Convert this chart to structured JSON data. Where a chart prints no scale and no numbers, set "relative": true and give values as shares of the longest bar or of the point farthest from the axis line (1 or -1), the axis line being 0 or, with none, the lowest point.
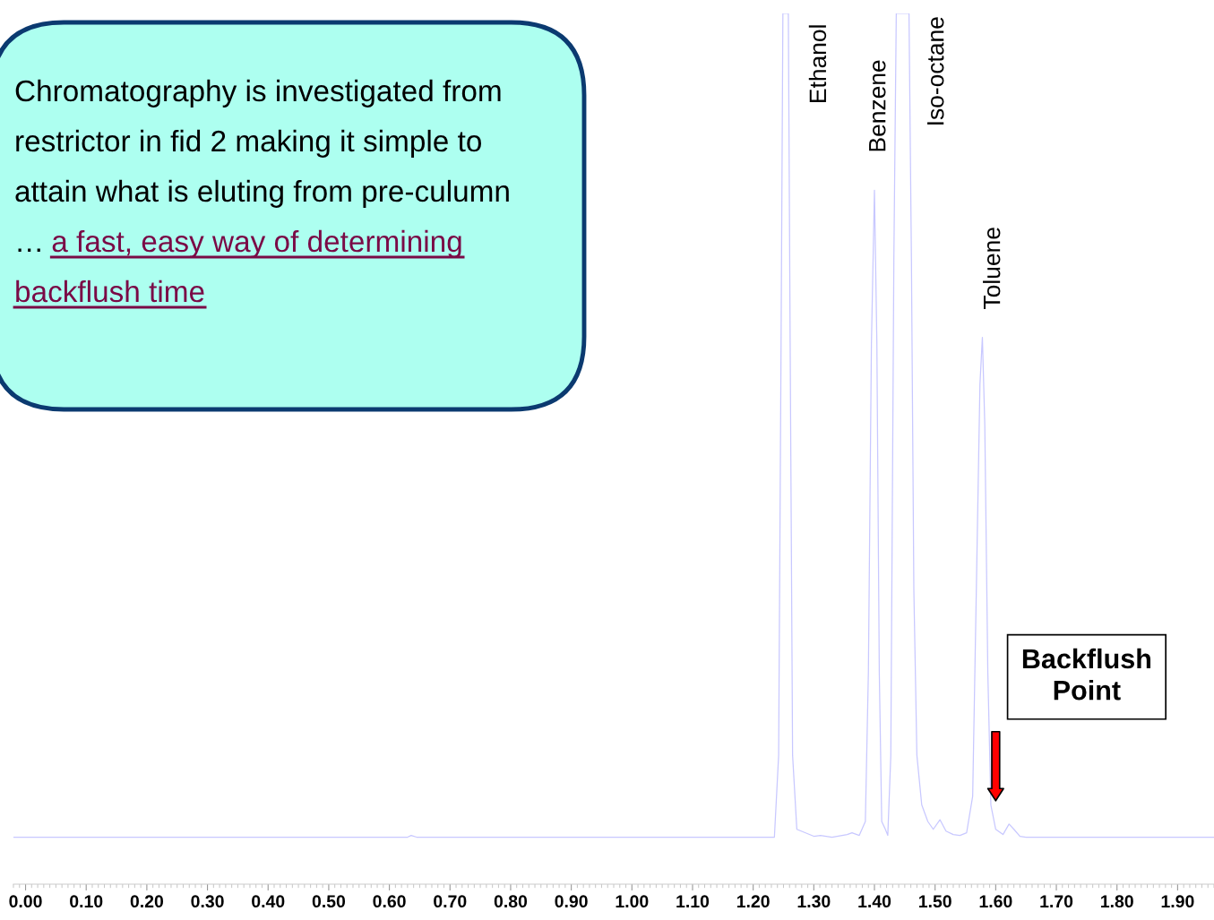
{
  "chart_data": {
    "type": "line",
    "relative": true,
    "x": [
      -0.02,
      0.63,
      0.636,
      0.645,
      1.235,
      1.242,
      1.246,
      1.249,
      1.258,
      1.261,
      1.265,
      1.272,
      1.3,
      1.311,
      1.33,
      1.355,
      1.363,
      1.375,
      1.385,
      1.39,
      1.395,
      1.4,
      1.404,
      1.408,
      1.412,
      1.418,
      1.422,
      1.427,
      1.432,
      1.436,
      1.457,
      1.461,
      1.465,
      1.47,
      1.478,
      1.488,
      1.497,
      1.508,
      1.518,
      1.53,
      1.541,
      1.552,
      1.562,
      1.568,
      1.574,
      1.578,
      1.582,
      1.587,
      1.592,
      1.6,
      1.612,
      1.622,
      1.63,
      1.64,
      1.65,
      1.96
    ],
    "series": [
      {
        "color": "#c8c8ff",
        "values": [
          0.054,
          0.054,
          0.056,
          0.054,
          0.054,
          0.148,
          0.621,
          1.0,
          1.0,
          0.621,
          0.148,
          0.063,
          0.055,
          0.056,
          0.054,
          0.057,
          0.059,
          0.056,
          0.072,
          0.243,
          0.621,
          0.797,
          0.621,
          0.243,
          0.072,
          0.063,
          0.056,
          0.148,
          0.716,
          1.0,
          1.0,
          0.716,
          0.337,
          0.148,
          0.091,
          0.072,
          0.063,
          0.074,
          0.061,
          0.057,
          0.056,
          0.059,
          0.101,
          0.337,
          0.574,
          0.628,
          0.527,
          0.243,
          0.091,
          0.063,
          0.057,
          0.069,
          0.063,
          0.055,
          0.054,
          0.054
        ]
      }
    ],
    "xlim": [
      -0.02,
      1.96
    ],
    "xticks": [
      {
        "value": 0,
        "label": "0.00"
      },
      {
        "value": 0.1,
        "label": "0.10"
      },
      {
        "value": 0.2,
        "label": "0.20"
      },
      {
        "value": 0.3,
        "label": "0.30"
      },
      {
        "value": 0.4,
        "label": "0.40"
      },
      {
        "value": 0.5,
        "label": "0.50"
      },
      {
        "value": 0.6,
        "label": "0.60"
      },
      {
        "value": 0.7,
        "label": "0.70"
      },
      {
        "value": 0.8,
        "label": "0.80"
      },
      {
        "value": 0.9,
        "label": "0.90"
      },
      {
        "value": 1.0,
        "label": "1.00"
      },
      {
        "value": 1.1,
        "label": "1.10"
      },
      {
        "value": 1.2,
        "label": "1.20"
      },
      {
        "value": 1.3,
        "label": "1.30"
      },
      {
        "value": 1.4,
        "label": "1.40"
      },
      {
        "value": 1.5,
        "label": "1.50"
      },
      {
        "value": 1.6,
        "label": "1.60"
      },
      {
        "value": 1.7,
        "label": "1.70"
      },
      {
        "value": 1.8,
        "label": "1.80"
      },
      {
        "value": 1.9,
        "label": "1.90"
      }
    ],
    "tick_labels": "x",
    "grid": false,
    "legend": false,
    "annotations": [
      "Ethanol",
      "Benzene",
      "Iso-octane",
      "Toluene",
      "Backflush Point",
      "Chromatography is investigated from restrictor in fid 2 making it simple to attain what is eluting from pre-culumn …",
      "a fast, easy way of determining backflush time"
    ]
  }
}
